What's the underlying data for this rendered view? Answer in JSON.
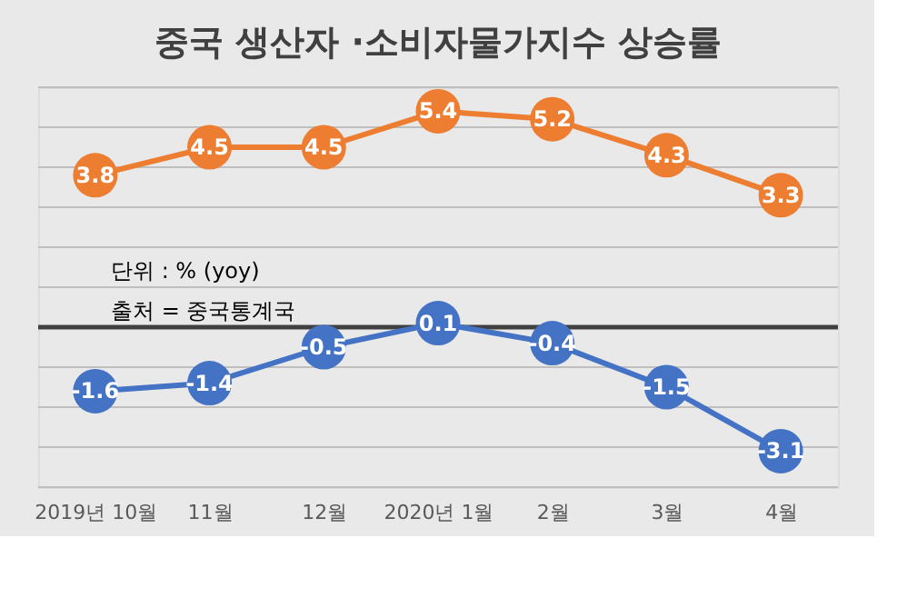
{
  "chart_data": {
    "type": "line",
    "title": "중국 생산자 ·소비자물가지수 상승률",
    "categories": [
      "2019년 10월",
      "11월",
      "12월",
      "2020년 1월",
      "2월",
      "3월",
      "4월"
    ],
    "series": [
      {
        "color": "#ed7d31",
        "values": [
          3.8,
          4.5,
          4.5,
          5.4,
          5.2,
          4.3,
          3.3
        ]
      },
      {
        "color": "#4472c4",
        "values": [
          -1.6,
          -1.4,
          -0.5,
          0.1,
          -0.4,
          -1.5,
          -3.1
        ]
      }
    ],
    "ylim": [
      -4,
      6
    ],
    "yticks": [
      {
        "value": -4,
        "label": null
      },
      {
        "value": -3,
        "label": null
      },
      {
        "value": -2,
        "label": null
      },
      {
        "value": -1,
        "label": null
      },
      {
        "value": 0,
        "label": null
      },
      {
        "value": 1,
        "label": null
      },
      {
        "value": 2,
        "label": null
      },
      {
        "value": 3,
        "label": null
      },
      {
        "value": 4,
        "label": null
      },
      {
        "value": 5,
        "label": null
      },
      {
        "value": 6,
        "label": null
      }
    ],
    "grid": "y",
    "tick_labels": "x",
    "marker": "circle",
    "line_style": "solid",
    "data_labels": true,
    "ref_lines": [
      {
        "axis": "y",
        "value": 0,
        "color": "#404040"
      }
    ],
    "annotations": [
      "단위 : % (yoy)",
      "출처 = 중국통계국"
    ]
  }
}
